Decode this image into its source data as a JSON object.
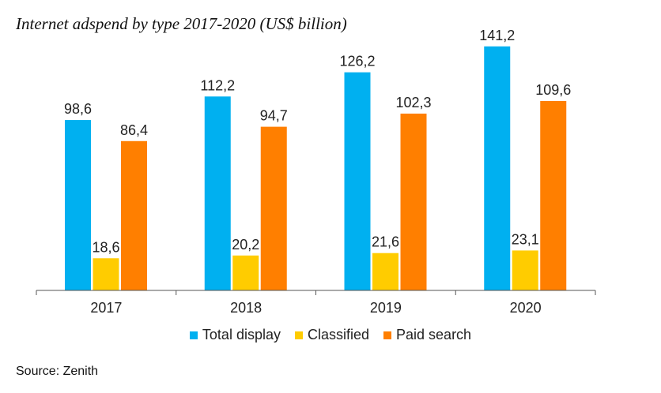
{
  "chart_data": {
    "type": "bar",
    "title": "Internet adspend by type 2017-2020 (US$ billion)",
    "categories": [
      "2017",
      "2018",
      "2019",
      "2020"
    ],
    "series": [
      {
        "name": "Total display",
        "color": "#00B0F0",
        "values": [
          98.6,
          112.2,
          126.2,
          141.2
        ],
        "labels": [
          "98,6",
          "112,2",
          "126,2",
          "141,2"
        ]
      },
      {
        "name": "Classified",
        "color": "#FFCC00",
        "values": [
          18.6,
          20.2,
          21.6,
          23.1
        ],
        "labels": [
          "18,6",
          "20,2",
          "21,6",
          "23,1"
        ]
      },
      {
        "name": "Paid search",
        "color": "#FF7F00",
        "values": [
          86.4,
          94.7,
          102.3,
          109.6
        ],
        "labels": [
          "86,4",
          "94,7",
          "102,3",
          "109,6"
        ]
      }
    ],
    "ylim": [
      0,
      150
    ],
    "grid": false,
    "legend_position": "bottom"
  },
  "source": "Source: Zenith"
}
